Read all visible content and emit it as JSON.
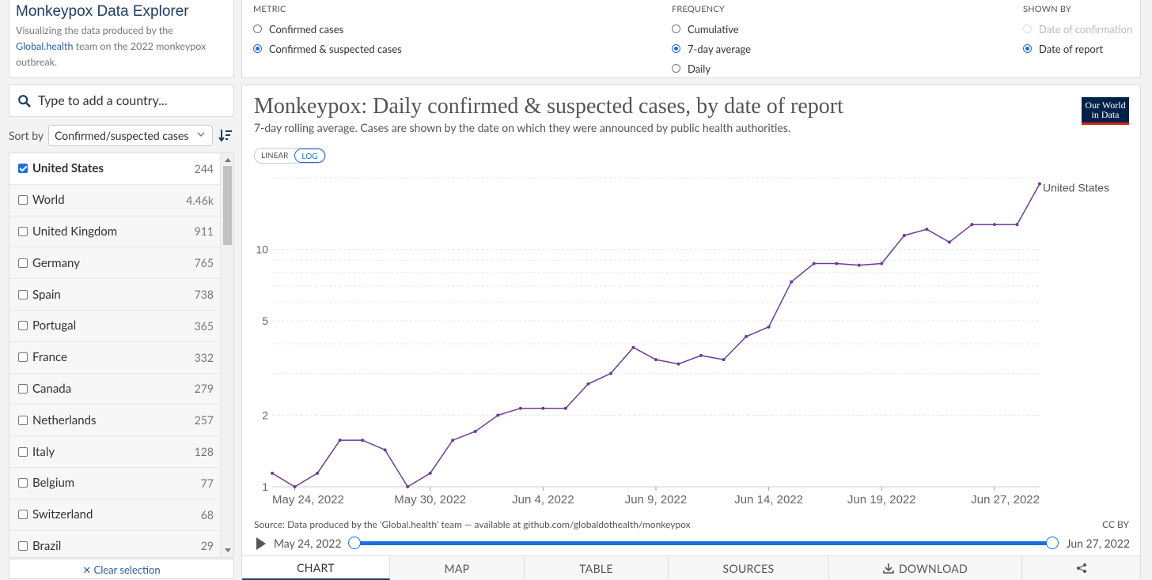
{
  "sidebar": {
    "title": "Monkeypox Data Explorer",
    "desc_pre": "Visualizing the data produced by the ",
    "desc_link": "Global.health",
    "desc_post": " team on the 2022 monkeypox outbreak.",
    "search_placeholder": "Type to add a country...",
    "sort_label": "Sort by",
    "sort_value": "Confirmed/suspected cases",
    "clear_label": "Clear selection",
    "countries": [
      {
        "name": "United States",
        "value": "244",
        "checked": true
      },
      {
        "name": "World",
        "value": "4.46k",
        "checked": false
      },
      {
        "name": "United Kingdom",
        "value": "911",
        "checked": false
      },
      {
        "name": "Germany",
        "value": "765",
        "checked": false
      },
      {
        "name": "Spain",
        "value": "738",
        "checked": false
      },
      {
        "name": "Portugal",
        "value": "365",
        "checked": false
      },
      {
        "name": "France",
        "value": "332",
        "checked": false
      },
      {
        "name": "Canada",
        "value": "279",
        "checked": false
      },
      {
        "name": "Netherlands",
        "value": "257",
        "checked": false
      },
      {
        "name": "Italy",
        "value": "128",
        "checked": false
      },
      {
        "name": "Belgium",
        "value": "77",
        "checked": false
      },
      {
        "name": "Switzerland",
        "value": "68",
        "checked": false
      },
      {
        "name": "Brazil",
        "value": "29",
        "checked": false
      }
    ]
  },
  "controls": {
    "metric": {
      "heading": "METRIC",
      "options": [
        "Confirmed cases",
        "Confirmed & suspected cases"
      ],
      "selected": 1
    },
    "frequency": {
      "heading": "FREQUENCY",
      "options": [
        "Cumulative",
        "7-day average",
        "Daily"
      ],
      "selected": 1
    },
    "shown_by": {
      "heading": "SHOWN BY",
      "options": [
        "Date of confirmation",
        "Date of report"
      ],
      "selected": 1,
      "disabled": [
        0
      ]
    }
  },
  "chart": {
    "title": "Monkeypox: Daily confirmed & suspected cases, by date of report",
    "subtitle": "7-day rolling average. Cases are shown by the date on which they were announced by public health authorities.",
    "logo_line1": "Our World",
    "logo_line2": "in Data",
    "scale_options": [
      "LINEAR",
      "LOG"
    ],
    "scale_selected": "LOG",
    "source": "Source: Data produced by the 'Global.health' team — available at github.com/globaldothealth/monkeypox",
    "license": "CC BY",
    "timeline_start": "May 24, 2022",
    "timeline_end": "Jun 27, 2022",
    "accent": "#6a3d9a"
  },
  "tabs": [
    {
      "label": "CHART",
      "active": true
    },
    {
      "label": "MAP",
      "active": false
    },
    {
      "label": "TABLE",
      "active": false
    },
    {
      "label": "SOURCES",
      "active": false
    },
    {
      "label": "DOWNLOAD",
      "active": false
    },
    {
      "label": "",
      "active": false
    }
  ],
  "chart_data": {
    "type": "line",
    "yscale": "log",
    "ylim": [
      1,
      20
    ],
    "y_ticks": [
      1,
      2,
      5,
      10
    ],
    "x_ticks": [
      "May 24, 2022",
      "May 30, 2022",
      "Jun 4, 2022",
      "Jun 9, 2022",
      "Jun 14, 2022",
      "Jun 19, 2022",
      "Jun 27, 2022"
    ],
    "x_tick_days": [
      0,
      6,
      11,
      16,
      21,
      26,
      31
    ],
    "grid": true,
    "series": [
      {
        "name": "United States",
        "color": "#6a3d9a",
        "x": [
          "May 23, 2022",
          "May 24, 2022",
          "May 25, 2022",
          "May 26, 2022",
          "May 27, 2022",
          "May 28, 2022",
          "May 29, 2022",
          "May 30, 2022",
          "May 31, 2022",
          "Jun 1, 2022",
          "Jun 2, 2022",
          "Jun 3, 2022",
          "Jun 4, 2022",
          "Jun 5, 2022",
          "Jun 6, 2022",
          "Jun 7, 2022",
          "Jun 8, 2022",
          "Jun 9, 2022",
          "Jun 10, 2022",
          "Jun 11, 2022",
          "Jun 12, 2022",
          "Jun 13, 2022",
          "Jun 14, 2022",
          "Jun 15, 2022",
          "Jun 16, 2022",
          "Jun 17, 2022",
          "Jun 18, 2022",
          "Jun 19, 2022",
          "Jun 20, 2022",
          "Jun 21, 2022",
          "Jun 22, 2022",
          "Jun 23, 2022",
          "Jun 24, 2022",
          "Jun 25, 2022",
          "Jun 26, 2022"
        ],
        "values": [
          1.14,
          1.0,
          1.14,
          1.57,
          1.57,
          1.43,
          1.0,
          1.14,
          1.57,
          1.71,
          2.0,
          2.14,
          2.14,
          2.14,
          2.71,
          3.0,
          3.86,
          3.43,
          3.29,
          3.57,
          3.43,
          4.29,
          4.71,
          7.29,
          8.71,
          8.71,
          8.57,
          8.71,
          11.43,
          12.14,
          10.71,
          12.71,
          12.71,
          12.71,
          18.86
        ]
      }
    ]
  }
}
